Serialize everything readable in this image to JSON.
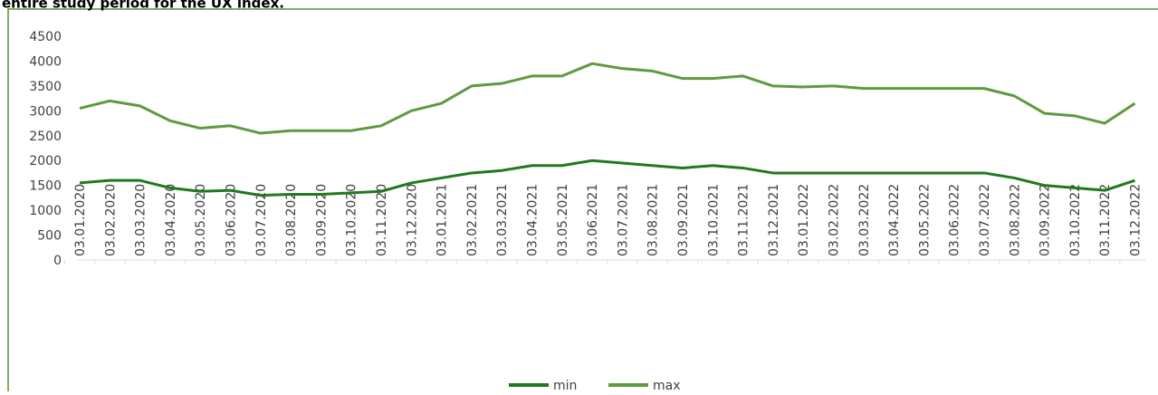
{
  "chart_data": {
    "type": "line",
    "title": "entire study period for the UX index.",
    "categories": [
      "03.01.2020",
      "03.02.2020",
      "03.03.2020",
      "03.04.2020",
      "03.05.2020",
      "03.06.2020",
      "03.07.2020",
      "03.08.2020",
      "03.09.2020",
      "03.10.2020",
      "03.11.2020",
      "03.12.2020",
      "03.01.2021",
      "03.02.2021",
      "03.03.2021",
      "03.04.2021",
      "03.05.2021",
      "03.06.2021",
      "03.07.2021",
      "03.08.2021",
      "03.09.2021",
      "03.10.2021",
      "03.11.2021",
      "03.12.2021",
      "03.01.2022",
      "03.02.2022",
      "03.03.2022",
      "03.04.2022",
      "03.05.2022",
      "03.06.2022",
      "03.07.2022",
      "03.08.2022",
      "03.09.2022",
      "03.10.2022",
      "03.11.2022",
      "03.12.2022"
    ],
    "series": [
      {
        "name": "min",
        "color": "#1f7a1f",
        "values": [
          1550,
          1600,
          1600,
          1450,
          1380,
          1400,
          1300,
          1320,
          1320,
          1350,
          1380,
          1550,
          1650,
          1750,
          1800,
          1900,
          1900,
          2000,
          1950,
          1900,
          1850,
          1900,
          1850,
          1750,
          1750,
          1750,
          1750,
          1750,
          1750,
          1750,
          1750,
          1650,
          1500,
          1450,
          1400,
          1600
        ]
      },
      {
        "name": "max",
        "color": "#5e9a3e",
        "values": [
          3050,
          3200,
          3100,
          2800,
          2650,
          2700,
          2550,
          2600,
          2600,
          2600,
          2700,
          3000,
          3150,
          3500,
          3550,
          3700,
          3700,
          3950,
          3850,
          3800,
          3650,
          3650,
          3700,
          3500,
          3480,
          3500,
          3450,
          3450,
          3450,
          3450,
          3450,
          3300,
          2950,
          2900,
          2750,
          3150
        ]
      }
    ],
    "ylim": [
      0,
      4500
    ],
    "yticks": [
      0,
      500,
      1000,
      1500,
      2000,
      2500,
      3000,
      3500,
      4000,
      4500
    ]
  }
}
